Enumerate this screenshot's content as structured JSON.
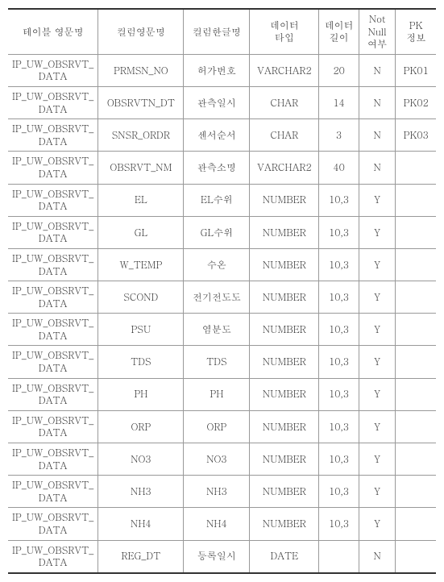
{
  "columns": [
    "테이블 영문명",
    "컬럼영문명",
    "컬럼한글명",
    "데이터\n타입",
    "데이터\n길이",
    "Not\nNull\n여부",
    "PK\n정보"
  ],
  "rows": [
    [
      "IP_UW_OBSRVT_DATA",
      "PRMSN_NO",
      "허가번호",
      "VARCHAR2",
      "20",
      "N",
      "PK01"
    ],
    [
      "IP_UW_OBSRVT_DATA",
      "OBSRVTN_DT",
      "관측일시",
      "CHAR",
      "14",
      "N",
      "PK02"
    ],
    [
      "IP_UW_OBSRVT_DATA",
      "SNSR_ORDR",
      "센서순서",
      "CHAR",
      "3",
      "N",
      "PK03"
    ],
    [
      "IP_UW_OBSRVT_DATA",
      "OBSRVT_NM",
      "관측소명",
      "VARCHAR2",
      "40",
      "N",
      ""
    ],
    [
      "IP_UW_OBSRVT_DATA",
      "EL",
      "EL수위",
      "NUMBER",
      "10,3",
      "Y",
      ""
    ],
    [
      "IP_UW_OBSRVT_DATA",
      "GL",
      "GL수위",
      "NUMBER",
      "10,3",
      "Y",
      ""
    ],
    [
      "IP_UW_OBSRVT_DATA",
      "W_TEMP",
      "수온",
      "NUMBER",
      "10,3",
      "Y",
      ""
    ],
    [
      "IP_UW_OBSRVT_DATA",
      "SCOND",
      "전기전도도",
      "NUMBER",
      "10,3",
      "Y",
      ""
    ],
    [
      "IP_UW_OBSRVT_DATA",
      "PSU",
      "염분도",
      "NUMBER",
      "10,3",
      "Y",
      ""
    ],
    [
      "IP_UW_OBSRVT_DATA",
      "TDS",
      "TDS",
      "NUMBER",
      "10,3",
      "Y",
      ""
    ],
    [
      "IP_UW_OBSRVT_DATA",
      "PH",
      "PH",
      "NUMBER",
      "10,3",
      "Y",
      ""
    ],
    [
      "IP_UW_OBSRVT_DATA",
      "ORP",
      "ORP",
      "NUMBER",
      "10,3",
      "Y",
      ""
    ],
    [
      "IP_UW_OBSRVT_DATA",
      "NO3",
      "NO3",
      "NUMBER",
      "10,3",
      "Y",
      ""
    ],
    [
      "IP_UW_OBSRVT_DATA",
      "NH3",
      "NH3",
      "NUMBER",
      "10,3",
      "Y",
      ""
    ],
    [
      "IP_UW_OBSRVT_DATA",
      "NH4",
      "NH4",
      "NUMBER",
      "10,3",
      "Y",
      ""
    ],
    [
      "IP_UW_OBSRVT_DATA",
      "REG_DT",
      "등록일시",
      "DATE",
      "",
      "N",
      ""
    ]
  ],
  "style": {
    "font_family": "Batang, serif",
    "font_size_pt": 9,
    "border_color": "#999999",
    "outer_border_color": "#333333",
    "background_color": "#ffffff",
    "text_color": "#333333",
    "col_classes": [
      "c0",
      "c1",
      "c2",
      "c3",
      "c4",
      "c5",
      "c6"
    ]
  }
}
